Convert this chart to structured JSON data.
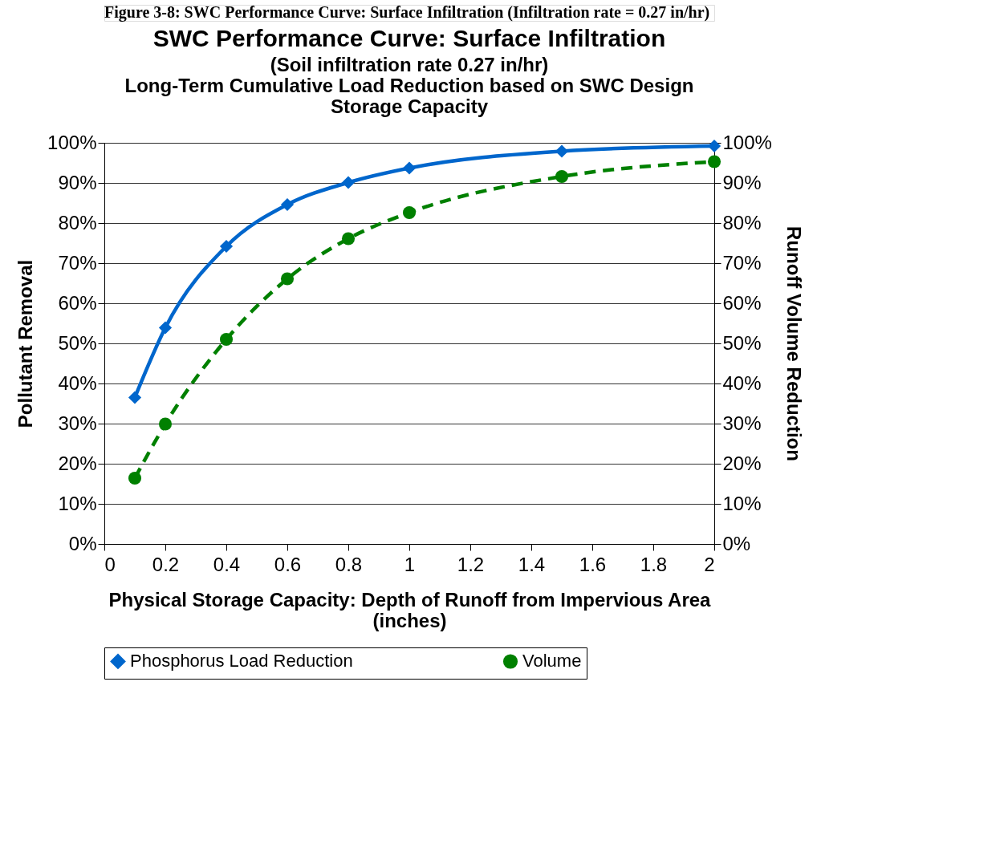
{
  "chart_data": {
    "type": "line",
    "title": "SWC Performance Curve: Surface Infiltration",
    "subtitle": "(Soil infiltration rate 0.27 in/hr)\nLong-Term Cumulative Load Reduction based on SWC Design\nStorage Capacity",
    "annotations": [
      "Figure 3-8: SWC Performance Curve: Surface Infiltration (Infiltration rate = 0.27 in/hr)"
    ],
    "xlabel": "Physical Storage Capacity: Depth of Runoff from Impervious Area\n(inches)",
    "ylabel": "Pollutant Removal",
    "y2label": "Runoff Volume Reduction",
    "x": [
      0.1,
      0.2,
      0.4,
      0.6,
      0.8,
      1,
      1.5,
      2
    ],
    "series": [
      {
        "name": "Phosphorus Load Reduction",
        "color": "#0066cc",
        "values": [
          36.5,
          53.9,
          74.2,
          84.6,
          90.1,
          93.7,
          97.9,
          99.2
        ],
        "marker": "diamond",
        "line_style": "solid"
      },
      {
        "name": "Volume",
        "color": "#008000",
        "axis": "y2",
        "values": [
          16.4,
          29.9,
          51.0,
          66.1,
          76.1,
          82.6,
          91.6,
          95.3
        ],
        "marker": "circle",
        "line_style": "dashed"
      }
    ],
    "xlim": [
      0,
      2
    ],
    "xticks": [
      0,
      0.2,
      0.4,
      0.6,
      0.8,
      1,
      1.2,
      1.4,
      1.6,
      1.8,
      2
    ],
    "ylim": [
      0,
      100
    ],
    "yticks": [
      {
        "value": 0,
        "label": "0%"
      },
      {
        "value": 10,
        "label": "10%"
      },
      {
        "value": 20,
        "label": "20%"
      },
      {
        "value": 30,
        "label": "30%"
      },
      {
        "value": 40,
        "label": "40%"
      },
      {
        "value": 50,
        "label": "50%"
      },
      {
        "value": 60,
        "label": "60%"
      },
      {
        "value": 70,
        "label": "70%"
      },
      {
        "value": 80,
        "label": "80%"
      },
      {
        "value": 90,
        "label": "90%"
      },
      {
        "value": 100,
        "label": "100%"
      }
    ],
    "y2lim": [
      0,
      100
    ],
    "y2ticks": [
      {
        "value": 0,
        "label": "0%"
      },
      {
        "value": 10,
        "label": "10%"
      },
      {
        "value": 20,
        "label": "20%"
      },
      {
        "value": 30,
        "label": "30%"
      },
      {
        "value": 40,
        "label": "40%"
      },
      {
        "value": 50,
        "label": "50%"
      },
      {
        "value": 60,
        "label": "60%"
      },
      {
        "value": 70,
        "label": "70%"
      },
      {
        "value": 80,
        "label": "80%"
      },
      {
        "value": 90,
        "label": "90%"
      },
      {
        "value": 100,
        "label": "100%"
      }
    ],
    "grid": "y",
    "legend": "bottom"
  }
}
